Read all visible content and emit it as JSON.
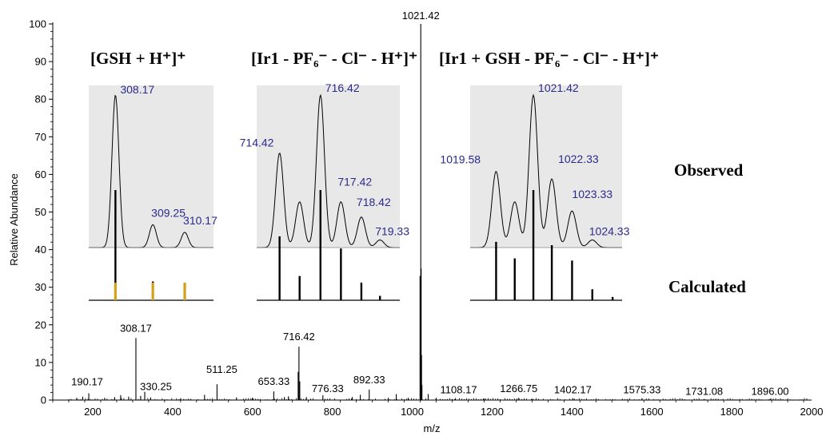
{
  "chart_data": {
    "type": "line",
    "xlabel": "m/z",
    "ylabel": "Relative Abundance",
    "xlim": [
      100,
      2000
    ],
    "ylim": [
      0,
      100
    ],
    "x_ticks": [
      "200",
      "400",
      "600",
      "800",
      "1000",
      "1200",
      "1400",
      "1600",
      "1800",
      "2000"
    ],
    "y_ticks": [
      "0",
      "10",
      "20",
      "30",
      "40",
      "50",
      "60",
      "70",
      "80",
      "90",
      "100"
    ],
    "peaks": [
      {
        "x": 160,
        "y": 0.6
      },
      {
        "x": 175,
        "y": 0.9
      },
      {
        "x": 190.17,
        "y": 1.8
      },
      {
        "x": 230,
        "y": 0.6
      },
      {
        "x": 255,
        "y": 0.8
      },
      {
        "x": 270,
        "y": 1.3
      },
      {
        "x": 290,
        "y": 0.9
      },
      {
        "x": 308.17,
        "y": 16.5
      },
      {
        "x": 320,
        "y": 1.1
      },
      {
        "x": 330.25,
        "y": 2.2
      },
      {
        "x": 345,
        "y": 0.7
      },
      {
        "x": 420,
        "y": 0.5
      },
      {
        "x": 480,
        "y": 1.4
      },
      {
        "x": 511.25,
        "y": 4.2
      },
      {
        "x": 560,
        "y": 0.7
      },
      {
        "x": 600,
        "y": 0.6
      },
      {
        "x": 653.33,
        "y": 2.3
      },
      {
        "x": 680,
        "y": 0.8
      },
      {
        "x": 690,
        "y": 1.0
      },
      {
        "x": 714.42,
        "y": 7.5
      },
      {
        "x": 716.42,
        "y": 14.2
      },
      {
        "x": 718.42,
        "y": 5.0
      },
      {
        "x": 735,
        "y": 0.8
      },
      {
        "x": 776.33,
        "y": 1.3
      },
      {
        "x": 850,
        "y": 0.8
      },
      {
        "x": 870,
        "y": 1.4
      },
      {
        "x": 892.33,
        "y": 2.8
      },
      {
        "x": 940,
        "y": 0.6
      },
      {
        "x": 960,
        "y": 1.6
      },
      {
        "x": 990,
        "y": 0.6
      },
      {
        "x": 1019.58,
        "y": 33.0
      },
      {
        "x": 1021.42,
        "y": 100.0
      },
      {
        "x": 1022.33,
        "y": 35.0
      },
      {
        "x": 1023.33,
        "y": 12.0
      },
      {
        "x": 1024.33,
        "y": 4.0
      },
      {
        "x": 1040,
        "y": 1.6
      },
      {
        "x": 1060,
        "y": 0.6
      },
      {
        "x": 1108.17,
        "y": 0.5
      },
      {
        "x": 1180,
        "y": 0.4
      },
      {
        "x": 1266.75,
        "y": 0.6
      },
      {
        "x": 1300,
        "y": 0.4
      },
      {
        "x": 1402.17,
        "y": 0.5
      },
      {
        "x": 1575.33,
        "y": 0.5
      },
      {
        "x": 1731.08,
        "y": 0.3
      },
      {
        "x": 1896.0,
        "y": 0.3
      }
    ],
    "peak_labels": [
      {
        "text": "190.17",
        "x": 190.17,
        "y": 1.8
      },
      {
        "text": "308.17",
        "x": 308.17,
        "y": 16.5
      },
      {
        "text": "330.25",
        "x": 330.25,
        "y": 2.2
      },
      {
        "text": "511.25",
        "x": 511.25,
        "y": 4.2
      },
      {
        "text": "653.33",
        "x": 653.33,
        "y": 2.3
      },
      {
        "text": "716.42",
        "x": 716.42,
        "y": 14.2
      },
      {
        "text": "776.33",
        "x": 776.33,
        "y": 1.3
      },
      {
        "text": "892.33",
        "x": 892.33,
        "y": 2.8
      },
      {
        "text": "1021.42",
        "x": 1021.42,
        "y": 100.0
      },
      {
        "text": "1108.17",
        "x": 1108.17,
        "y": 0.5
      },
      {
        "text": "1266.75",
        "x": 1266.75,
        "y": 0.6
      },
      {
        "text": "1402.17",
        "x": 1402.17,
        "y": 0.5
      },
      {
        "text": "1575.33",
        "x": 1575.33,
        "y": 0.5
      },
      {
        "text": "1731.08",
        "x": 1731.08,
        "y": 0.3
      },
      {
        "text": "1896.00",
        "x": 1896.0,
        "y": 0.3
      }
    ],
    "insets": [
      {
        "title": "[GSH + H⁺]⁺",
        "observed": [
          {
            "x": 308.17,
            "y": 100,
            "label": "308.17"
          },
          {
            "x": 309.25,
            "y": 15,
            "label": "309.25"
          },
          {
            "x": 310.17,
            "y": 10,
            "label": "310.17"
          }
        ],
        "calculated": [
          {
            "x": 308.17,
            "y": 100
          },
          {
            "x": 309.25,
            "y": 17
          },
          {
            "x": 310.17,
            "y": 8
          }
        ]
      },
      {
        "title": "[Ir1 - PF₆⁻ - Cl⁻ - H⁺]⁺",
        "observed": [
          {
            "x": 714.42,
            "y": 62,
            "label": "714.42"
          },
          {
            "x": 715.4,
            "y": 30,
            "label": ""
          },
          {
            "x": 716.42,
            "y": 100,
            "label": "716.42"
          },
          {
            "x": 717.42,
            "y": 30,
            "label": "717.42"
          },
          {
            "x": 718.42,
            "y": 20,
            "label": "718.42"
          },
          {
            "x": 719.33,
            "y": 5,
            "label": "719.33"
          }
        ],
        "calculated": [
          {
            "x": 714.42,
            "y": 58
          },
          {
            "x": 715.4,
            "y": 22
          },
          {
            "x": 716.42,
            "y": 100
          },
          {
            "x": 717.42,
            "y": 47
          },
          {
            "x": 718.42,
            "y": 16
          },
          {
            "x": 719.33,
            "y": 4
          }
        ]
      },
      {
        "title": "[Ir1 + GSH - PF₆⁻ - Cl⁻ - H⁺]⁺",
        "observed": [
          {
            "x": 1019.58,
            "y": 50,
            "label": "1019.58"
          },
          {
            "x": 1020.5,
            "y": 30,
            "label": ""
          },
          {
            "x": 1021.42,
            "y": 100,
            "label": "1021.42"
          },
          {
            "x": 1022.33,
            "y": 45,
            "label": "1022.33"
          },
          {
            "x": 1023.33,
            "y": 24,
            "label": "1023.33"
          },
          {
            "x": 1024.33,
            "y": 5,
            "label": "1024.33"
          }
        ],
        "calculated": [
          {
            "x": 1019.58,
            "y": 53
          },
          {
            "x": 1020.5,
            "y": 38
          },
          {
            "x": 1021.42,
            "y": 100
          },
          {
            "x": 1022.33,
            "y": 50
          },
          {
            "x": 1023.33,
            "y": 36
          },
          {
            "x": 1024.33,
            "y": 10
          },
          {
            "x": 1025.33,
            "y": 3
          }
        ]
      }
    ],
    "side_labels": {
      "observed": "Observed",
      "calculated": "Calculated"
    },
    "colors": {
      "spectrum": "#000000",
      "inset_background": "#e8e8e8",
      "inset_label": "#2a2a8a",
      "calculated_highlight": "#d4a017"
    }
  }
}
